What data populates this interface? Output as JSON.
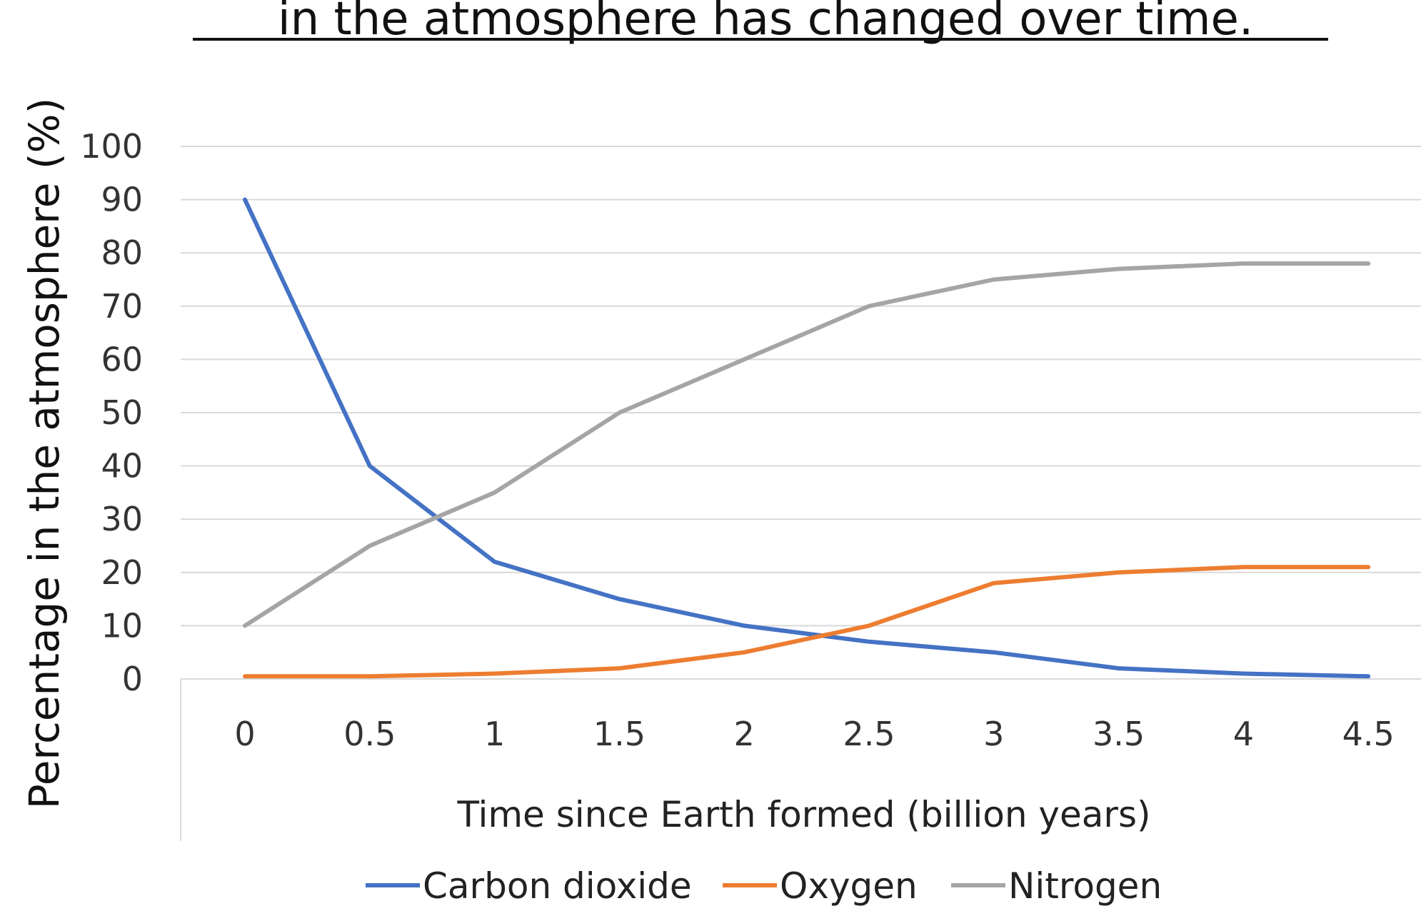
{
  "chart_data": {
    "type": "line",
    "title": "in the atmosphere has changed over time.",
    "xlabel": "Time since Earth formed (billion years)",
    "ylabel": "Percentage in the atmosphere (%)",
    "x": [
      "0",
      "0.5",
      "1",
      "1.5",
      "2",
      "2.5",
      "3",
      "3.5",
      "4",
      "4.5"
    ],
    "y_ticks": [
      "0",
      "10",
      "20",
      "30",
      "40",
      "50",
      "60",
      "70",
      "80",
      "90",
      "100"
    ],
    "ylim": [
      0,
      100
    ],
    "grid": true,
    "legend": "bottom",
    "series": [
      {
        "name": "Carbon dioxide",
        "color": "#4472c4",
        "values": [
          90,
          40,
          22,
          15,
          10,
          7,
          5,
          2,
          1,
          0.5
        ]
      },
      {
        "name": "Oxygen",
        "color": "#ed7d31",
        "values": [
          0.5,
          0.5,
          1,
          2,
          5,
          10,
          18,
          20,
          21,
          21
        ]
      },
      {
        "name": "Nitrogen",
        "color": "#a5a5a5",
        "values": [
          10,
          25,
          35,
          50,
          60,
          70,
          75,
          77,
          78,
          78
        ]
      }
    ]
  }
}
